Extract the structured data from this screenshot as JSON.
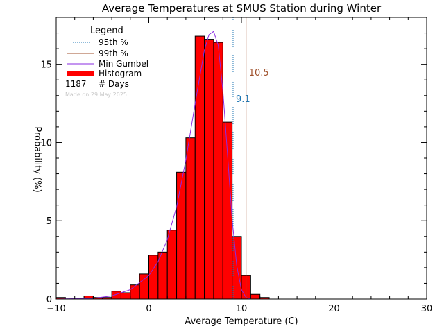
{
  "chart_data": {
    "type": "bar",
    "title": "Average Temperatures at SMUS Station during Winter",
    "xlabel": "Average Temperature (C)",
    "ylabel": "Probability (%)",
    "xlim": [
      -10,
      30
    ],
    "ylim": [
      0,
      18
    ],
    "x_ticks": [
      -10,
      0,
      10,
      20,
      30
    ],
    "y_ticks": [
      0,
      5,
      10,
      15
    ],
    "grid": false,
    "legend": {
      "title": "Legend",
      "placement": "top-left",
      "entries": [
        {
          "label": "95th %",
          "style": "dotted",
          "color": "#1f77b4"
        },
        {
          "label": "99th %",
          "style": "solid",
          "color": "#a0522d"
        },
        {
          "label": "Min Gumbel",
          "style": "solid",
          "color": "#8a2be2"
        },
        {
          "label": "Histogram",
          "style": "thick",
          "color": "#ff0000"
        }
      ],
      "days_count": "1187",
      "days_label": "# Days",
      "made_on": "Made on 29 May 2025"
    },
    "histogram": {
      "bin_width": 1,
      "bins": [
        {
          "x0": -10,
          "value": 0.1
        },
        {
          "x0": -7,
          "value": 0.2
        },
        {
          "x0": -6,
          "value": 0.1
        },
        {
          "x0": -5,
          "value": 0.1
        },
        {
          "x0": -4,
          "value": 0.5
        },
        {
          "x0": -3,
          "value": 0.4
        },
        {
          "x0": -2,
          "value": 0.9
        },
        {
          "x0": -1,
          "value": 1.6
        },
        {
          "x0": 0,
          "value": 2.8
        },
        {
          "x0": 1,
          "value": 3.0
        },
        {
          "x0": 2,
          "value": 4.4
        },
        {
          "x0": 3,
          "value": 8.1
        },
        {
          "x0": 4,
          "value": 10.3
        },
        {
          "x0": 5,
          "value": 16.8
        },
        {
          "x0": 6,
          "value": 16.6
        },
        {
          "x0": 7,
          "value": 16.4
        },
        {
          "x0": 8,
          "value": 11.3
        },
        {
          "x0": 9,
          "value": 4.0
        },
        {
          "x0": 10,
          "value": 1.5
        },
        {
          "x0": 11,
          "value": 0.3
        },
        {
          "x0": 12,
          "value": 0.1
        }
      ]
    },
    "gumbel_curve": {
      "name": "Min Gumbel",
      "color": "#8a2be2",
      "points": [
        [
          -10,
          0.0
        ],
        [
          -6,
          0.05
        ],
        [
          -4,
          0.2
        ],
        [
          -2,
          0.6
        ],
        [
          0,
          1.5
        ],
        [
          1,
          2.4
        ],
        [
          2,
          3.8
        ],
        [
          3,
          5.9
        ],
        [
          4,
          8.9
        ],
        [
          5,
          12.5
        ],
        [
          6,
          15.9
        ],
        [
          6.5,
          16.9
        ],
        [
          7,
          17.1
        ],
        [
          7.5,
          16.2
        ],
        [
          8,
          13.3
        ],
        [
          8.5,
          9.2
        ],
        [
          9,
          5.1
        ],
        [
          9.5,
          2.1
        ],
        [
          10,
          0.6
        ],
        [
          10.5,
          0.1
        ],
        [
          11,
          0.0
        ],
        [
          14,
          0.0
        ]
      ]
    },
    "percentile_lines": [
      {
        "name": "95th %",
        "x": 9.1,
        "label": "9.1",
        "style": "dotted",
        "color": "#1f77b4"
      },
      {
        "name": "99th %",
        "x": 10.5,
        "label": "10.5",
        "style": "solid",
        "color": "#a0522d"
      }
    ]
  }
}
